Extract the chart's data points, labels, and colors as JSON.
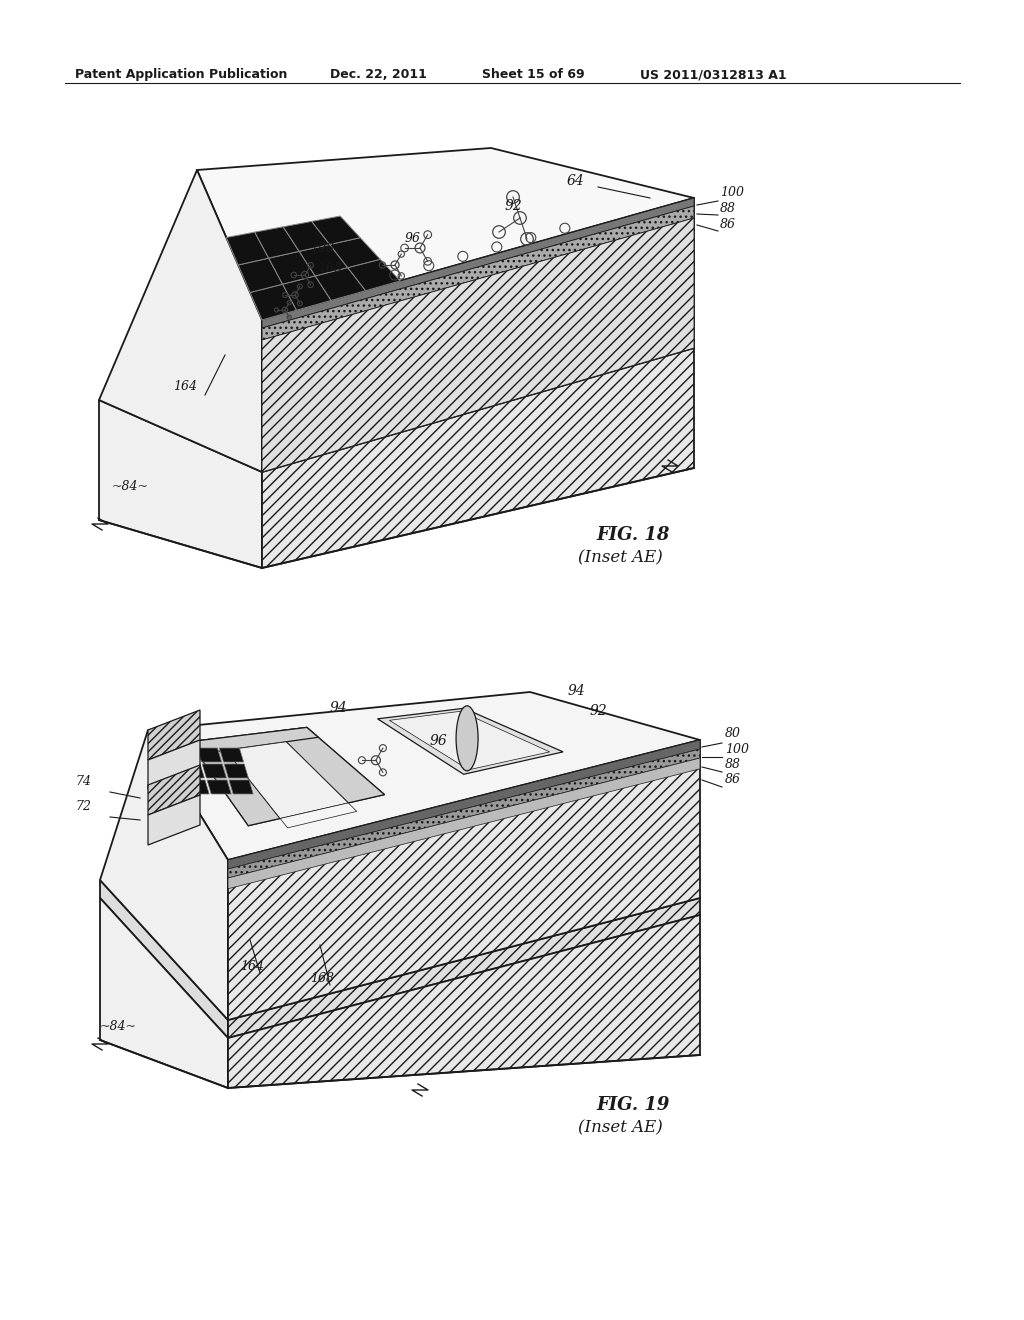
{
  "background_color": "#ffffff",
  "header_text": "Patent Application Publication",
  "header_date": "Dec. 22, 2011",
  "header_sheet": "Sheet 15 of 69",
  "header_patent": "US 2011/0312813 A1",
  "fig18_label": "FIG. 18",
  "fig18_sub": "(Inset AE)",
  "fig19_label": "FIG. 19",
  "fig19_sub": "(Inset AE)",
  "black": "#1a1a1a",
  "hatch_color": "#555555",
  "face_white": "#f8f8f8",
  "face_light": "#eeeeee",
  "face_hatch": "#e0e0e0",
  "face_dark": "#888888",
  "grid_color": "#111111",
  "grid_edge": "#666666"
}
